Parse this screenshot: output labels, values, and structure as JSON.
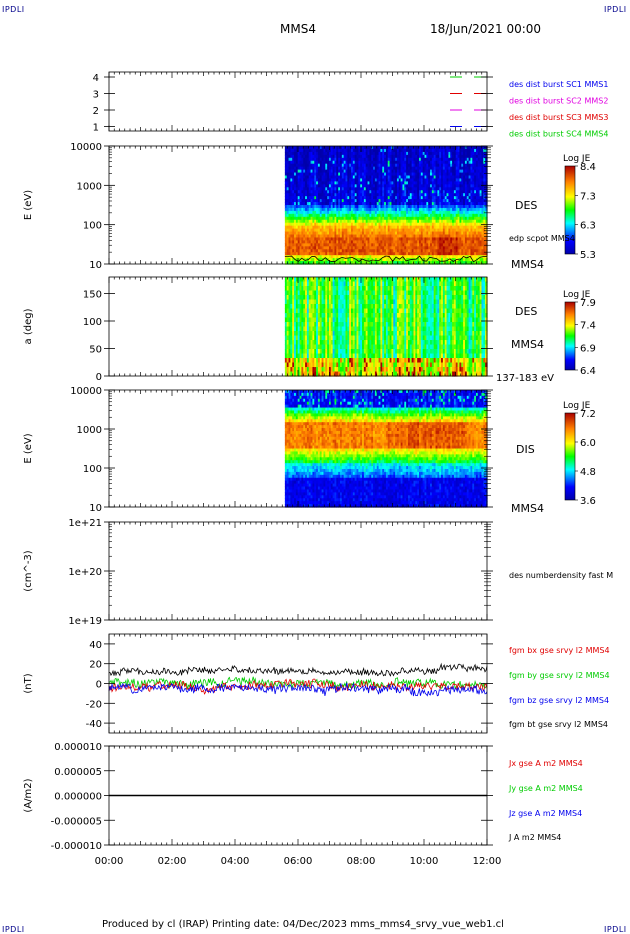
{
  "header": {
    "corner_tl": "IPDLI",
    "corner_tr": "IPDLI",
    "corner_bl": "IPDLI",
    "corner_br": "IPDLI",
    "spacecraft": "MMS4",
    "datetime": "18/Jun/2021 00:00"
  },
  "footer": {
    "text": "Produced by cl (IRAP)   Printing date: 04/Dec/2023   mms_mms4_srvy_vue_web1.cl"
  },
  "colors": {
    "red": "#e00000",
    "green": "#00cc00",
    "blue": "#0000ee",
    "magenta": "#e000e0",
    "black": "#000000"
  },
  "chart_data": [
    {
      "id": "availability",
      "type": "line",
      "yticks": [
        "4",
        "3",
        "2",
        "1"
      ],
      "legend": [
        {
          "label": "des dist burst SC1 MMS1",
          "color": "#0000ee"
        },
        {
          "label": "des dist burst SC2 MMS2",
          "color": "#e000e0"
        },
        {
          "label": "des dist burst SC3 MMS3",
          "color": "#e00000"
        },
        {
          "label": "des dist burst SC4 MMS4",
          "color": "#00cc00"
        }
      ]
    },
    {
      "id": "des-energy",
      "type": "heatmap",
      "ylabel": "E (eV)",
      "yscale": "log",
      "yticks": [
        "10000",
        "1000",
        "100",
        "10"
      ],
      "side_labels": [
        "DES",
        "edp scpot MMS4",
        "MMS4"
      ],
      "colorbar": {
        "title": "Log JE",
        "ticks": [
          "8.4",
          "7.3",
          "6.3",
          "5.3"
        ]
      },
      "data_start": "05:35"
    },
    {
      "id": "des-pitch",
      "type": "heatmap",
      "ylabel": "a (deg)",
      "yticks": [
        "150",
        "100",
        "50",
        "0"
      ],
      "side_labels": [
        "DES",
        "MMS4",
        "137-183 eV"
      ],
      "colorbar": {
        "title": "Log JE",
        "ticks": [
          "7.9",
          "7.4",
          "6.9",
          "6.4"
        ]
      },
      "data_start": "05:35"
    },
    {
      "id": "dis-energy",
      "type": "heatmap",
      "ylabel": "E (eV)",
      "yscale": "log",
      "yticks": [
        "10000",
        "1000",
        "100",
        "10"
      ],
      "side_labels": [
        "DIS",
        "MMS4"
      ],
      "colorbar": {
        "title": "Log JE",
        "ticks": [
          "7.2",
          "6.0",
          "4.8",
          "3.6"
        ]
      },
      "data_start": "05:35"
    },
    {
      "id": "density",
      "type": "line",
      "ylabel": "(cm^-3)",
      "yscale": "log",
      "yticks": [
        "1e+21",
        "1e+20",
        "1e+19"
      ],
      "legend": [
        {
          "label": "des numberdensity fast M",
          "color": "#000000"
        }
      ]
    },
    {
      "id": "magnetic-field",
      "type": "line",
      "ylabel": "(nT)",
      "yticks": [
        "40",
        "20",
        "0",
        "-20",
        "-40"
      ],
      "ylim": [
        -50,
        50
      ],
      "legend": [
        {
          "label": "fgm bx gse srvy l2 MMS4",
          "color": "#e00000"
        },
        {
          "label": "fgm by gse srvy l2 MMS4",
          "color": "#00cc00"
        },
        {
          "label": "fgm bz gse srvy l2 MMS4",
          "color": "#0000ee"
        },
        {
          "label": "fgm bt gse srvy l2 MMS4",
          "color": "#000000"
        }
      ],
      "series_approx": [
        {
          "name": "fgm bt gse srvy l2 MMS4",
          "level": 12
        },
        {
          "name": "fgm by gse srvy l2 MMS4",
          "level": 0
        },
        {
          "name": "fgm bx gse srvy l2 MMS4",
          "level": -3
        },
        {
          "name": "fgm bz gse srvy l2 MMS4",
          "level": -5
        }
      ]
    },
    {
      "id": "current-density",
      "type": "line",
      "ylabel": "(A/m2)",
      "yticks": [
        "0.000010",
        "0.000005",
        "0.000000",
        "-0.000005",
        "-0.000010"
      ],
      "ylim": [
        -1e-05,
        1e-05
      ],
      "legend": [
        {
          "label": "Jx gse A m2 MMS4",
          "color": "#e00000"
        },
        {
          "label": "Jy gse A m2 MMS4",
          "color": "#00cc00"
        },
        {
          "label": "Jz gse A m2 MMS4",
          "color": "#0000ee"
        },
        {
          "label": "J A m2 MMS4",
          "color": "#000000"
        }
      ],
      "value": 0
    }
  ],
  "xaxis": {
    "ticks": [
      "00:00",
      "02:00",
      "04:00",
      "06:00",
      "08:00",
      "10:00",
      "12:00"
    ],
    "range_hours": [
      0,
      12
    ]
  }
}
